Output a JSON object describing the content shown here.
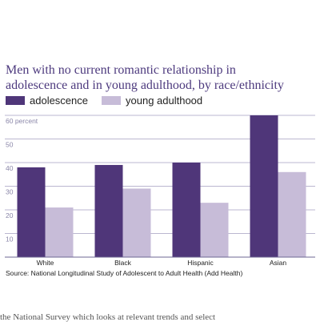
{
  "chart_data": {
    "type": "bar",
    "title": "Men with no current romantic relationship in adolescence and in young adulthood, by race/ethnicity",
    "title_lines": [
      "Men with no current romantic relationship in",
      "adolescence and in young adulthood, by race/ethnicity"
    ],
    "categories": [
      "White",
      "Black",
      "Hispanic",
      "Asian"
    ],
    "series": [
      {
        "name": "adolescence",
        "values": [
          38,
          39,
          40,
          60
        ],
        "color": "#4f3679"
      },
      {
        "name": "young adulthood",
        "values": [
          21,
          29,
          23,
          36
        ],
        "color": "#c7bcd8"
      }
    ],
    "ylim": [
      0,
      60
    ],
    "yticks": [
      10,
      20,
      30,
      40,
      50
    ],
    "top_tick_label": "60 percent",
    "grid": true,
    "legend_position": "top-left",
    "source": "Source: National Longitudinal Study of Adolescent to Adult Health (Add Health)"
  },
  "bottom_text": "the National Survey which looks at relevant trends and select"
}
